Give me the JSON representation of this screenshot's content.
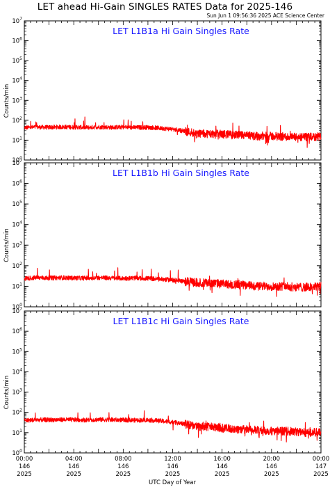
{
  "header": {
    "title": "LET ahead Hi-Gain SINGLES RATES Data for 2025-146",
    "timestamp": "Sun Jun  1 09:56:36 2025 ACE Science Center"
  },
  "colors": {
    "series": "#ff0000",
    "panel_title": "#1a1aff",
    "axes": "#000000"
  },
  "chart_data": [
    {
      "type": "line",
      "title": "LET L1B1a Hi Gain Singles Rate",
      "ylabel": "Counts/min",
      "xlabel": "UTC Day of Year",
      "yscale": "log",
      "ylim": [
        1,
        10000000
      ],
      "xlim": [
        0,
        24
      ],
      "series": [
        {
          "x_hours": [
            0,
            1,
            2,
            3,
            4,
            5,
            6,
            7,
            8,
            9,
            10,
            11,
            12,
            13,
            14,
            15,
            16,
            17,
            18,
            19,
            20,
            21,
            22,
            23,
            24
          ],
          "values": [
            42,
            45,
            44,
            46,
            45,
            43,
            46,
            44,
            45,
            43,
            44,
            40,
            36,
            28,
            22,
            21,
            20,
            18,
            17,
            16,
            16,
            15,
            14,
            14,
            15
          ]
        }
      ]
    },
    {
      "type": "line",
      "title": "LET L1B1b Hi Gain Singles Rate",
      "ylabel": "Counts/min",
      "xlabel": "UTC Day of Year",
      "yscale": "log",
      "ylim": [
        1,
        10000000
      ],
      "xlim": [
        0,
        24
      ],
      "series": [
        {
          "x_hours": [
            0,
            1,
            2,
            3,
            4,
            5,
            6,
            7,
            8,
            9,
            10,
            11,
            12,
            13,
            14,
            15,
            16,
            17,
            18,
            19,
            20,
            21,
            22,
            23,
            24
          ],
          "values": [
            24,
            26,
            25,
            26,
            25,
            25,
            26,
            25,
            24,
            25,
            24,
            22,
            20,
            17,
            15,
            14,
            13,
            12,
            11,
            10,
            10,
            10,
            9,
            9,
            10
          ]
        }
      ]
    },
    {
      "type": "line",
      "title": "LET L1B1c Hi Gain Singles Rate",
      "ylabel": "Counts/min",
      "xlabel": "UTC Day of Year",
      "yscale": "log",
      "ylim": [
        1,
        10000000
      ],
      "xlim": [
        0,
        24
      ],
      "series": [
        {
          "x_hours": [
            0,
            1,
            2,
            3,
            4,
            5,
            6,
            7,
            8,
            9,
            10,
            11,
            12,
            13,
            14,
            15,
            16,
            17,
            18,
            19,
            20,
            21,
            22,
            23,
            24
          ],
          "values": [
            40,
            43,
            42,
            44,
            43,
            42,
            44,
            43,
            42,
            41,
            42,
            38,
            33,
            26,
            21,
            19,
            17,
            15,
            14,
            13,
            12,
            12,
            11,
            10,
            11
          ]
        }
      ]
    }
  ],
  "x_axis": {
    "xlabel": "UTC Day of Year",
    "ticks": [
      {
        "hour": 0,
        "time": "00:00",
        "day": "146",
        "year": "2025"
      },
      {
        "hour": 4,
        "time": "04:00",
        "day": "146",
        "year": "2025"
      },
      {
        "hour": 8,
        "time": "08:00",
        "day": "146",
        "year": "2025"
      },
      {
        "hour": 12,
        "time": "12:00",
        "day": "146",
        "year": "2025"
      },
      {
        "hour": 16,
        "time": "16:00",
        "day": "146",
        "year": "2025"
      },
      {
        "hour": 20,
        "time": "20:00",
        "day": "146",
        "year": "2025"
      },
      {
        "hour": 24,
        "time": "00:00",
        "day": "147",
        "year": "2025"
      }
    ]
  }
}
